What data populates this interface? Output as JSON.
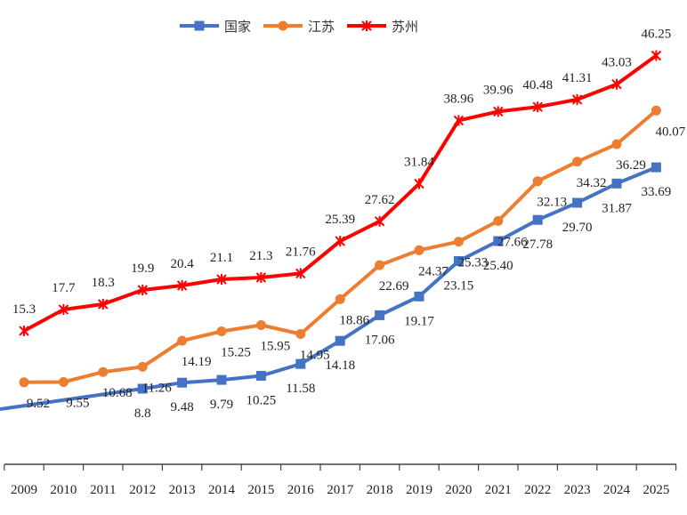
{
  "chart_data": {
    "type": "line",
    "title": "",
    "xlabel": "",
    "ylabel": "",
    "ylim": [
      0,
      52
    ],
    "grid": false,
    "legend_position": "top",
    "categories": [
      "2009",
      "2010",
      "2011",
      "2012",
      "2013",
      "2014",
      "2015",
      "2016",
      "2017",
      "2018",
      "2019",
      "2020",
      "2021",
      "2022",
      "2023",
      "2024",
      "2025"
    ],
    "series": [
      {
        "name": "国家",
        "color": "#4472C4",
        "marker": "square",
        "values": [
          null,
          null,
          null,
          "8.8",
          "9.48",
          "9.79",
          "10.25",
          "11.58",
          "14.18",
          "17.06",
          "19.17",
          "23.15",
          "25.40",
          "27.78",
          "29.70",
          "31.87",
          "33.69"
        ]
      },
      {
        "name": "江苏",
        "color": "#ED7D31",
        "marker": "circle",
        "values": [
          "9.52",
          "9.55",
          "10.68",
          "11.26",
          "14.19",
          "15.25",
          "15.95",
          "14.95",
          "18.86",
          "22.69",
          "24.37",
          "25.33",
          "27.66",
          "32.13",
          "34.32",
          "36.29",
          "40.07"
        ]
      },
      {
        "name": "苏州",
        "color": "#FF0000",
        "marker": "star",
        "values": [
          "15.3",
          "17.7",
          "18.3",
          "19.9",
          "20.4",
          "21.1",
          "21.3",
          "21.76",
          "25.39",
          "27.62",
          "31.84",
          "38.96",
          "39.96",
          "40.48",
          "41.31",
          "43.03",
          "46.25"
        ]
      }
    ]
  }
}
